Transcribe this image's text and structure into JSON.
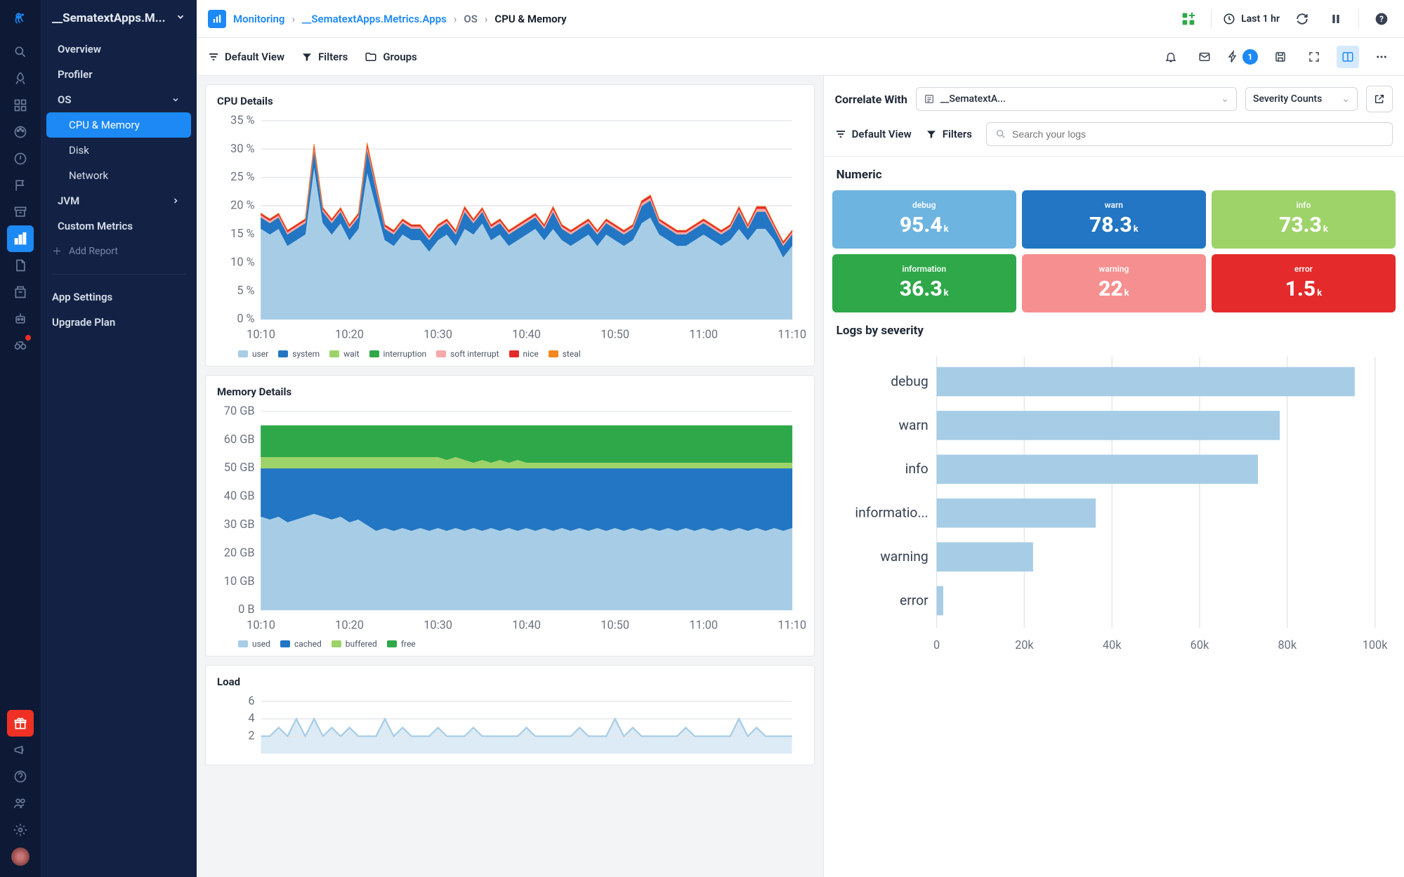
{
  "app_name": "__SematextApps.M...",
  "rail_icons": [
    "search",
    "rocket",
    "grid",
    "palette",
    "alert",
    "flag",
    "archive",
    "chart",
    "file",
    "target",
    "robot",
    "binoculars"
  ],
  "rail_active_index": 7,
  "rail_badge_index": 11,
  "rail_bottom": [
    "gift",
    "megaphone",
    "help",
    "people",
    "gear",
    "avatar"
  ],
  "sidebar": {
    "items": [
      {
        "label": "Overview",
        "type": "item"
      },
      {
        "label": "Profiler",
        "type": "item"
      },
      {
        "label": "OS",
        "type": "expand",
        "open": true
      },
      {
        "label": "CPU & Memory",
        "type": "sub",
        "active": true
      },
      {
        "label": "Disk",
        "type": "sub"
      },
      {
        "label": "Network",
        "type": "sub"
      },
      {
        "label": "JVM",
        "type": "expand",
        "open": false
      },
      {
        "label": "Custom Metrics",
        "type": "item"
      }
    ],
    "add_report": "Add Report",
    "bottom": [
      {
        "label": "App Settings"
      },
      {
        "label": "Upgrade Plan"
      }
    ]
  },
  "breadcrumb": {
    "root": "Monitoring",
    "app": "__SematextApps.Metrics.Apps",
    "section": "OS",
    "page": "CPU & Memory"
  },
  "topbar": {
    "time_label": "Last 1 hr"
  },
  "toolbar": {
    "default_view": "Default View",
    "filters": "Filters",
    "groups": "Groups",
    "events_badge": "1"
  },
  "correlate": {
    "title": "Correlate With",
    "select_app": "__SematextA...",
    "select_view": "Severity Counts",
    "default_view": "Default View",
    "filters": "Filters",
    "search_placeholder": "Search your logs"
  },
  "numeric": {
    "title": "Numeric",
    "tiles": [
      {
        "label": "debug",
        "value": "95.4",
        "unit": "k",
        "color": "#6eb4e0"
      },
      {
        "label": "warn",
        "value": "78.3",
        "unit": "k",
        "color": "#2276c3"
      },
      {
        "label": "info",
        "value": "73.3",
        "unit": "k",
        "color": "#9ed36a"
      },
      {
        "label": "information",
        "value": "36.3",
        "unit": "k",
        "color": "#2fa84a"
      },
      {
        "label": "warning",
        "value": "22",
        "unit": "k",
        "color": "#f68f8f"
      },
      {
        "label": "error",
        "value": "1.5",
        "unit": "k",
        "color": "#e42a2a"
      }
    ]
  },
  "severity_chart": {
    "title": "Logs by severity",
    "categories": [
      "debug",
      "warn",
      "info",
      "informatio...",
      "warning",
      "error"
    ],
    "values": [
      95400,
      78300,
      73300,
      36300,
      22000,
      1500
    ],
    "bar_color": "#a7cde6",
    "xmax": 100000,
    "xtick_step": 20000,
    "grid_color": "#e5e7eb",
    "label_fontsize": 13
  },
  "cpu_chart": {
    "title": "CPU Details",
    "type": "stacked-area",
    "x_labels": [
      "10:10",
      "10:20",
      "10:30",
      "10:40",
      "10:50",
      "11:00",
      "11:10"
    ],
    "y_max": 35,
    "y_step": 5,
    "y_unit": "%",
    "series": [
      {
        "name": "user",
        "color": "#a7cde6",
        "values": [
          16,
          15,
          16,
          13,
          14,
          15,
          27,
          17,
          15,
          17,
          14,
          16,
          26,
          20,
          14,
          13,
          15,
          14,
          14,
          12,
          14,
          15,
          13,
          16,
          15,
          17,
          14,
          15,
          13,
          14,
          15,
          16,
          14,
          16,
          14,
          13,
          14,
          15,
          13,
          15,
          14,
          13,
          14,
          17,
          18,
          15,
          14,
          13,
          13,
          14,
          15,
          14,
          13,
          14,
          16,
          14,
          16,
          16,
          14,
          11,
          13
        ]
      },
      {
        "name": "system",
        "color": "#2276c3",
        "values": [
          2,
          2,
          2,
          2,
          2,
          2,
          3,
          2,
          2,
          2,
          2,
          2,
          4,
          3,
          2,
          2,
          2,
          2,
          2,
          2,
          2,
          2,
          2,
          3,
          2,
          2,
          2,
          2,
          2,
          2,
          2,
          2,
          2,
          3,
          2,
          2,
          2,
          2,
          2,
          2,
          2,
          2,
          2,
          3,
          3,
          2,
          2,
          2,
          2,
          2,
          2,
          2,
          2,
          2,
          3,
          2,
          3,
          3,
          2,
          2,
          2
        ]
      },
      {
        "name": "wait",
        "color": "#9ed36a",
        "values": [
          0,
          0,
          0,
          0,
          0,
          0,
          0,
          0,
          0,
          0,
          0,
          0,
          0,
          0,
          0,
          0,
          0,
          0,
          0,
          0,
          0,
          0,
          0,
          0,
          0,
          0,
          0,
          0,
          0,
          0,
          0,
          0,
          0,
          0,
          0,
          0,
          0,
          0,
          0,
          0,
          0,
          0,
          0,
          0,
          0,
          0,
          0,
          0,
          0,
          0,
          0,
          0,
          0,
          0,
          0,
          0,
          0,
          0,
          0,
          0,
          0
        ]
      },
      {
        "name": "interruption",
        "color": "#2fa84a",
        "values": [
          0,
          0,
          0,
          0,
          0,
          0,
          0,
          0,
          0,
          0,
          0,
          0,
          0,
          0,
          0,
          0,
          0,
          0,
          0,
          0,
          0,
          0,
          0,
          0,
          0,
          0,
          0,
          0,
          0,
          0,
          0,
          0,
          0,
          0,
          0,
          0,
          0,
          0,
          0,
          0,
          0,
          0,
          0,
          0,
          0,
          0,
          0,
          0,
          0,
          0,
          0,
          0,
          0,
          0,
          0,
          0,
          0,
          0,
          0,
          0,
          0
        ]
      },
      {
        "name": "soft interrupt",
        "color": "#f7a8a8",
        "values": [
          0.4,
          0.4,
          0.4,
          0.4,
          0.4,
          0.4,
          0.5,
          0.4,
          0.4,
          0.4,
          0.4,
          0.4,
          0.6,
          0.5,
          0.4,
          0.4,
          0.4,
          0.4,
          0.4,
          0.4,
          0.4,
          0.4,
          0.4,
          0.5,
          0.4,
          0.4,
          0.4,
          0.4,
          0.4,
          0.4,
          0.4,
          0.4,
          0.4,
          0.5,
          0.4,
          0.4,
          0.4,
          0.4,
          0.4,
          0.4,
          0.4,
          0.4,
          0.4,
          0.5,
          0.5,
          0.4,
          0.4,
          0.4,
          0.4,
          0.4,
          0.4,
          0.4,
          0.4,
          0.4,
          0.5,
          0.4,
          0.5,
          0.5,
          0.4,
          0.4,
          0.4
        ]
      },
      {
        "name": "nice",
        "color": "#e42a2a",
        "values": [
          0.3,
          0.3,
          0.3,
          0.3,
          0.3,
          0.3,
          0.4,
          0.3,
          0.3,
          0.3,
          0.3,
          0.3,
          0.5,
          0.4,
          0.3,
          0.3,
          0.3,
          0.3,
          0.3,
          0.3,
          0.3,
          0.3,
          0.3,
          0.4,
          0.3,
          0.3,
          0.3,
          0.3,
          0.3,
          0.3,
          0.3,
          0.3,
          0.3,
          0.4,
          0.3,
          0.3,
          0.3,
          0.3,
          0.3,
          0.3,
          0.3,
          0.3,
          0.3,
          0.4,
          0.4,
          0.3,
          0.3,
          0.3,
          0.3,
          0.3,
          0.3,
          0.3,
          0.3,
          0.3,
          0.4,
          0.3,
          0.4,
          0.4,
          0.3,
          0.3,
          0.3
        ]
      },
      {
        "name": "steal",
        "color": "#f5871f",
        "values": [
          0,
          0,
          0,
          0,
          0,
          0,
          0,
          0,
          0,
          0,
          0,
          0,
          0,
          0,
          0,
          0,
          0,
          0,
          0,
          0,
          0,
          0,
          0,
          0,
          0,
          0,
          0,
          0,
          0,
          0,
          0,
          0,
          0,
          0,
          0,
          0,
          0,
          0,
          0,
          0,
          0,
          0,
          0,
          0,
          0,
          0,
          0,
          0,
          0,
          0,
          0,
          0,
          0,
          0,
          0,
          0,
          0,
          0,
          0,
          0,
          0
        ]
      }
    ]
  },
  "mem_chart": {
    "title": "Memory Details",
    "type": "stacked-area",
    "x_labels": [
      "10:10",
      "10:20",
      "10:30",
      "10:40",
      "10:50",
      "11:00",
      "11:10"
    ],
    "y_max": 70,
    "y_step": 10,
    "y_unit": "GB",
    "y_zero_unit": "B",
    "series": [
      {
        "name": "used",
        "color": "#a7cde6",
        "values": [
          33,
          32,
          33,
          31,
          32,
          33,
          34,
          33,
          32,
          33,
          31,
          32,
          30,
          28,
          29,
          28,
          29,
          28,
          29,
          28,
          29,
          28,
          29,
          28,
          29,
          28,
          29,
          28,
          29,
          28,
          29,
          28,
          29,
          28,
          29,
          28,
          29,
          28,
          29,
          28,
          29,
          28,
          29,
          28,
          29,
          28,
          29,
          28,
          29,
          28,
          29,
          28,
          29,
          28,
          29,
          28,
          29,
          28,
          29,
          28,
          29
        ]
      },
      {
        "name": "cached",
        "color": "#2276c3",
        "values": [
          17,
          18,
          17,
          19,
          18,
          17,
          16,
          17,
          18,
          17,
          19,
          18,
          20,
          22,
          21,
          22,
          21,
          22,
          21,
          22,
          21,
          22,
          21,
          22,
          21,
          22,
          21,
          22,
          21,
          22,
          21,
          22,
          21,
          22,
          21,
          22,
          21,
          22,
          21,
          22,
          21,
          22,
          21,
          22,
          21,
          22,
          21,
          22,
          21,
          22,
          21,
          22,
          21,
          22,
          21,
          22,
          21,
          22,
          21,
          22,
          21
        ]
      },
      {
        "name": "buffered",
        "color": "#9ed36a",
        "values": [
          4,
          4,
          4,
          4,
          4,
          4,
          4,
          4,
          4,
          4,
          4,
          4,
          4,
          4,
          4,
          4,
          4,
          4,
          4,
          4,
          4,
          3,
          4,
          3,
          2,
          3,
          2,
          3,
          2,
          3,
          2,
          2,
          2,
          2,
          2,
          2,
          2,
          2,
          2,
          2,
          2,
          2,
          2,
          2,
          2,
          2,
          2,
          2,
          2,
          2,
          2,
          2,
          2,
          2,
          2,
          2,
          2,
          2,
          2,
          2,
          2
        ]
      },
      {
        "name": "free",
        "color": "#2fa84a",
        "values": [
          11,
          11,
          11,
          11,
          11,
          11,
          11,
          11,
          11,
          11,
          11,
          11,
          11,
          11,
          11,
          11,
          11,
          11,
          11,
          11,
          11,
          12,
          11,
          12,
          13,
          12,
          13,
          12,
          13,
          12,
          13,
          13,
          13,
          13,
          13,
          13,
          13,
          13,
          13,
          13,
          13,
          13,
          13,
          13,
          13,
          13,
          13,
          13,
          13,
          13,
          13,
          13,
          13,
          13,
          13,
          13,
          13,
          13,
          13,
          13,
          13
        ]
      }
    ]
  },
  "load_chart": {
    "title": "Load",
    "type": "line",
    "y_max": 6,
    "y_step": 2,
    "color": "#a7cde6",
    "values": [
      2,
      2,
      3,
      2,
      4,
      2,
      4,
      2,
      3,
      2,
      3,
      2,
      2,
      2,
      4,
      2,
      3,
      2,
      2,
      2,
      3,
      2,
      2,
      2,
      3,
      2,
      2,
      2,
      2,
      2,
      3,
      2,
      2,
      2,
      2,
      2,
      3,
      2,
      2,
      2,
      4,
      2,
      3,
      2,
      2,
      2,
      2,
      2,
      3,
      2,
      2,
      2,
      2,
      2,
      4,
      2,
      3,
      2,
      2,
      2,
      2
    ]
  }
}
